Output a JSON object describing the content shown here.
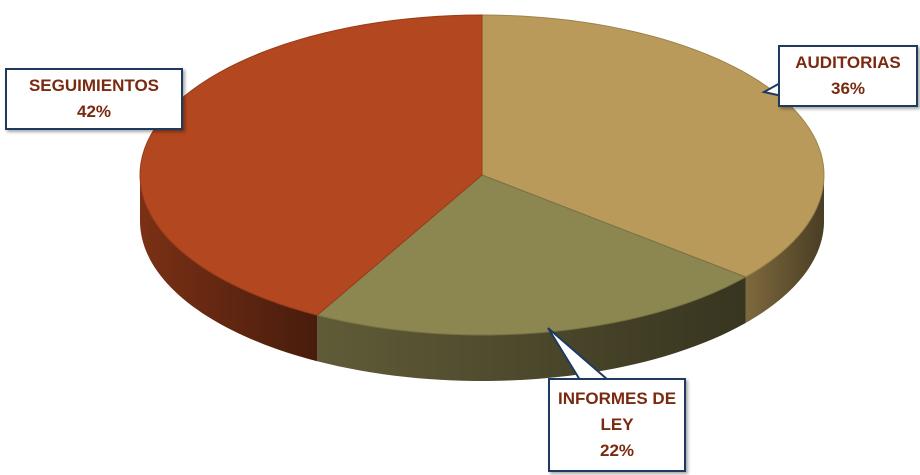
{
  "chart_data": {
    "type": "pie",
    "categories": [
      "AUDITORIAS",
      "INFORMES DE LEY",
      "SEGUIMIENTOS"
    ],
    "values": [
      36,
      22,
      42
    ],
    "value_labels": [
      "36%",
      "22%",
      "42%"
    ],
    "colors": [
      "#b99a5a",
      "#8c8650",
      "#b3471f"
    ]
  }
}
